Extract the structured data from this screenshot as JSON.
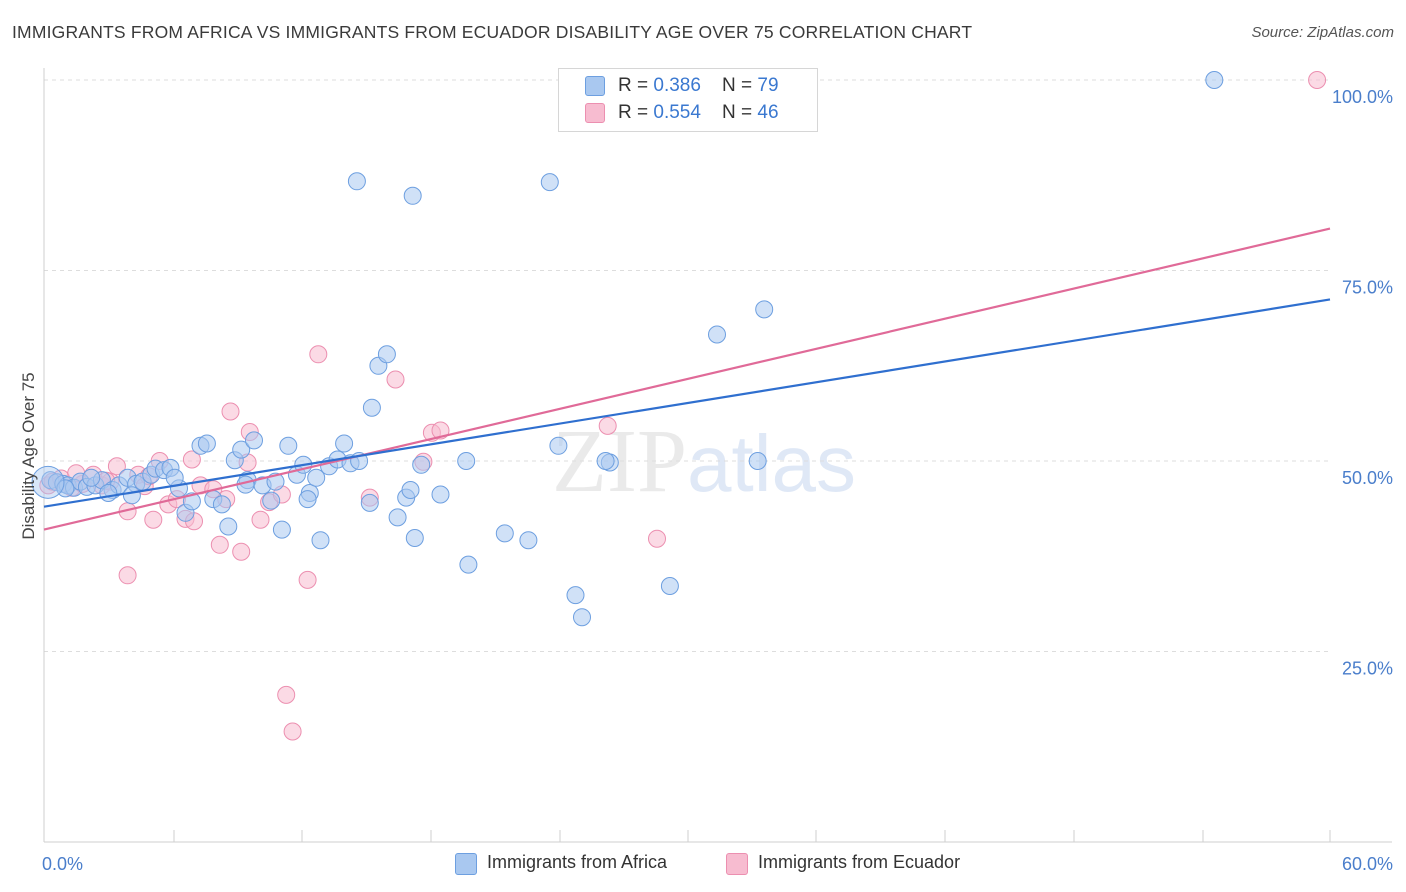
{
  "title": "IMMIGRANTS FROM AFRICA VS IMMIGRANTS FROM ECUADOR DISABILITY AGE OVER 75 CORRELATION CHART",
  "source": "Source: ZipAtlas.com",
  "watermark": {
    "zip": "ZIP",
    "atlas": "atlas"
  },
  "legend": {
    "africa": {
      "r_label": "R = ",
      "r_value": "0.386",
      "n_label": "N = ",
      "n_value": "79"
    },
    "ecuador": {
      "r_label": "R = ",
      "r_value": "0.554",
      "n_label": "N = ",
      "n_value": "46"
    }
  },
  "colors": {
    "africa_fill": "#a9c8f0",
    "africa_stroke": "#6d9fe0",
    "africa_line": "#2f6fcf",
    "ecuador_fill": "#f7bcd0",
    "ecuador_stroke": "#ec8fb0",
    "ecuador_line": "#e06a98",
    "tick_text": "#4a7ecb",
    "grid": "#dddddd"
  },
  "chart_data": {
    "type": "scatter",
    "title": "IMMIGRANTS FROM AFRICA VS IMMIGRANTS FROM ECUADOR DISABILITY AGE OVER 75 CORRELATION CHART",
    "xlabel": "",
    "ylabel": "Disability Age Over 75",
    "xlim": [
      0,
      60
    ],
    "ylim": [
      0,
      105
    ],
    "x_ticks": [
      "0.0%",
      "60.0%"
    ],
    "y_ticks": [
      {
        "value": 25,
        "label": "25.0%"
      },
      {
        "value": 50,
        "label": "50.0%"
      },
      {
        "value": 75,
        "label": "75.0%"
      },
      {
        "value": 100,
        "label": "100.0%"
      }
    ],
    "grid": "horizontal dashed",
    "legend_position": "top-center",
    "series": [
      {
        "name": "Immigrants from Africa",
        "trendline": {
          "x": [
            0,
            60
          ],
          "y": [
            44.0,
            71.2
          ]
        },
        "points": [
          [
            0.3,
            47.5
          ],
          [
            0.6,
            47.2
          ],
          [
            0.9,
            47.0
          ],
          [
            1.1,
            46.8
          ],
          [
            1.4,
            46.5
          ],
          [
            1.7,
            47.3
          ],
          [
            2.0,
            46.6
          ],
          [
            2.4,
            46.8
          ],
          [
            2.7,
            47.5
          ],
          [
            3.2,
            46.2
          ],
          [
            3.5,
            46.8
          ],
          [
            3.9,
            47.8
          ],
          [
            4.3,
            47.0
          ],
          [
            4.6,
            47.3
          ],
          [
            5.0,
            48.2
          ],
          [
            5.2,
            49.0
          ],
          [
            5.6,
            48.8
          ],
          [
            5.9,
            49.1
          ],
          [
            6.3,
            46.4
          ],
          [
            6.6,
            43.2
          ],
          [
            6.9,
            44.7
          ],
          [
            7.3,
            52.0
          ],
          [
            7.6,
            52.3
          ],
          [
            7.9,
            45.0
          ],
          [
            8.3,
            44.3
          ],
          [
            8.6,
            41.4
          ],
          [
            8.9,
            50.1
          ],
          [
            9.2,
            51.5
          ],
          [
            9.5,
            47.5
          ],
          [
            9.8,
            52.7
          ],
          [
            10.2,
            46.8
          ],
          [
            10.6,
            44.8
          ],
          [
            10.8,
            47.3
          ],
          [
            11.1,
            41.0
          ],
          [
            11.4,
            52.0
          ],
          [
            11.8,
            48.2
          ],
          [
            12.1,
            49.5
          ],
          [
            12.4,
            45.8
          ],
          [
            12.7,
            47.8
          ],
          [
            12.9,
            39.6
          ],
          [
            13.3,
            49.3
          ],
          [
            13.7,
            50.2
          ],
          [
            14.0,
            52.3
          ],
          [
            14.3,
            49.7
          ],
          [
            14.7,
            50.0
          ],
          [
            14.6,
            86.7
          ],
          [
            15.3,
            57.0
          ],
          [
            15.6,
            62.5
          ],
          [
            16.0,
            64.0
          ],
          [
            16.5,
            42.6
          ],
          [
            16.9,
            45.2
          ],
          [
            17.1,
            46.2
          ],
          [
            17.3,
            39.9
          ],
          [
            17.6,
            49.5
          ],
          [
            17.2,
            84.8
          ],
          [
            18.5,
            45.6
          ],
          [
            19.7,
            50.0
          ],
          [
            19.8,
            36.4
          ],
          [
            21.5,
            40.5
          ],
          [
            22.6,
            39.6
          ],
          [
            24.0,
            52.0
          ],
          [
            23.6,
            86.6
          ],
          [
            24.8,
            32.4
          ],
          [
            25.1,
            29.5
          ],
          [
            26.4,
            49.8
          ],
          [
            26.2,
            50.0
          ],
          [
            29.2,
            33.6
          ],
          [
            31.4,
            66.6
          ],
          [
            33.3,
            50.0
          ],
          [
            33.6,
            69.9
          ],
          [
            54.6,
            100.0
          ],
          [
            12.3,
            45.0
          ],
          [
            9.4,
            46.9
          ],
          [
            3.0,
            45.8
          ],
          [
            4.1,
            45.5
          ],
          [
            2.2,
            47.8
          ],
          [
            15.2,
            44.5
          ],
          [
            6.1,
            47.8
          ],
          [
            1.0,
            46.4
          ]
        ]
      },
      {
        "name": "Immigrants from Ecuador",
        "trendline": {
          "x": [
            0,
            60
          ],
          "y": [
            41.0,
            80.5
          ]
        },
        "points": [
          [
            0.2,
            46.8
          ],
          [
            0.4,
            47.3
          ],
          [
            0.8,
            47.7
          ],
          [
            1.3,
            46.5
          ],
          [
            1.8,
            47.0
          ],
          [
            2.3,
            48.2
          ],
          [
            2.7,
            46.8
          ],
          [
            3.1,
            47.3
          ],
          [
            3.4,
            49.3
          ],
          [
            3.9,
            43.4
          ],
          [
            3.9,
            35.0
          ],
          [
            4.4,
            48.2
          ],
          [
            4.7,
            46.7
          ],
          [
            5.1,
            42.3
          ],
          [
            5.4,
            50.0
          ],
          [
            5.8,
            44.3
          ],
          [
            6.2,
            45.0
          ],
          [
            6.6,
            42.4
          ],
          [
            6.9,
            50.2
          ],
          [
            7.3,
            46.8
          ],
          [
            7.9,
            46.3
          ],
          [
            8.2,
            39.0
          ],
          [
            8.5,
            45.0
          ],
          [
            8.7,
            56.5
          ],
          [
            9.2,
            38.1
          ],
          [
            9.5,
            49.8
          ],
          [
            9.6,
            53.8
          ],
          [
            10.1,
            42.3
          ],
          [
            10.5,
            44.6
          ],
          [
            11.1,
            45.6
          ],
          [
            11.3,
            19.3
          ],
          [
            11.6,
            14.5
          ],
          [
            12.3,
            34.4
          ],
          [
            12.8,
            64.0
          ],
          [
            15.2,
            45.2
          ],
          [
            16.4,
            60.7
          ],
          [
            17.7,
            49.9
          ],
          [
            18.1,
            53.7
          ],
          [
            18.5,
            54.0
          ],
          [
            26.3,
            54.6
          ],
          [
            28.6,
            39.8
          ],
          [
            59.4,
            100.0
          ],
          [
            2.9,
            47.4
          ],
          [
            1.5,
            48.4
          ],
          [
            4.9,
            48.0
          ],
          [
            7.0,
            42.1
          ]
        ]
      }
    ]
  }
}
